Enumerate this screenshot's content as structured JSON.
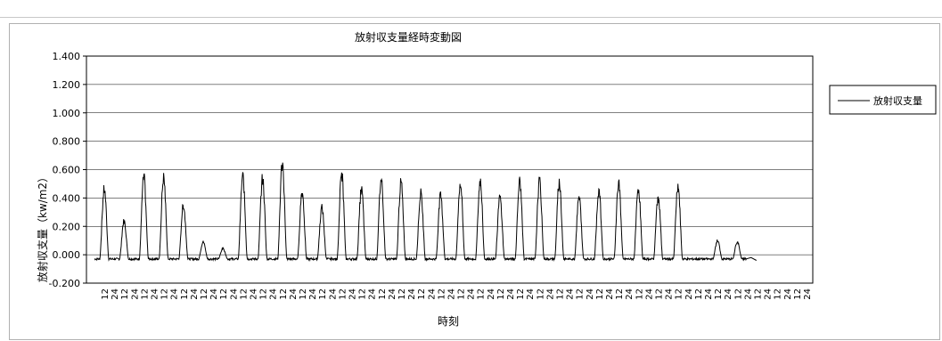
{
  "chart_data": {
    "type": "line",
    "title": "放射収支量経時変動図",
    "xlabel": "時刻",
    "ylabel": "放射収支量（kw/m2）",
    "ylim": [
      -0.2,
      1.4
    ],
    "yticks": [
      "1.400",
      "1.200",
      "1.000",
      "0.800",
      "0.600",
      "0.400",
      "0.200",
      "0.000",
      "-0.200"
    ],
    "ytick_values": [
      1.4,
      1.2,
      1.0,
      0.8,
      0.6,
      0.4,
      0.2,
      0.0,
      -0.2
    ],
    "xtick_pattern": [
      "12",
      "24"
    ],
    "days": 36,
    "grid": true,
    "legend_position": "right",
    "series": [
      {
        "name": "放射収支量",
        "color": "#000000",
        "daily_peaks": [
          0.5,
          0.26,
          0.59,
          0.59,
          0.38,
          0.1,
          0.05,
          0.6,
          0.58,
          0.7,
          0.48,
          0.36,
          0.62,
          0.5,
          0.58,
          0.55,
          0.47,
          0.45,
          0.55,
          0.56,
          0.44,
          0.56,
          0.56,
          0.55,
          0.44,
          0.49,
          0.55,
          0.51,
          0.44,
          0.53,
          0.0,
          0.11,
          0.1,
          0.0,
          0.0,
          0.0
        ],
        "night_value": -0.03
      }
    ]
  }
}
